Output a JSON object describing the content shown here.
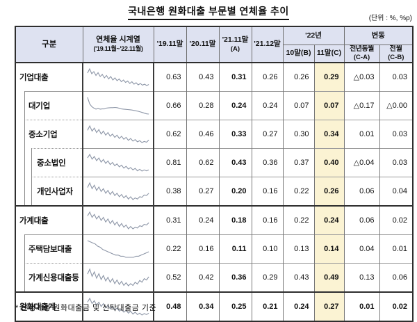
{
  "title": "국내은행 원화대출 부문별 연체율 추이",
  "unit_label": "(단위 : %, %p)",
  "footnote": "* 은행계정 원화대출금 및 신탁대출금 기준",
  "colors": {
    "header_bg": "#dee2f1",
    "highlight_col_bg": "#fbf3d3",
    "sparkline": "#8d96a7",
    "border_dark": "#2e2e2e",
    "border_light": "#9a9a9a"
  },
  "table": {
    "headers": {
      "category": "구분",
      "timeseries_line1": "연체율 시계열",
      "timeseries_line2": "('19.11월~'22.11월)",
      "col_1911": "'19.11말",
      "col_2011": "'20.11말",
      "col_2111_line1": "'21.11말",
      "col_2111_line2": "(A)",
      "col_2112": "'21.12말",
      "group_2022": "'22년",
      "col_oct": "10말(B)",
      "col_nov": "11말(C)",
      "group_change": "변동",
      "col_yoy_line1": "전년동월",
      "col_yoy_line2": "(C-A)",
      "col_mom_line1": "전월",
      "col_mom_line2": "(C-B)"
    },
    "rows": [
      {
        "label": "기업대출",
        "level": 0,
        "values": [
          "0.63",
          "0.43",
          "0.31",
          "0.26",
          "0.26",
          "0.29",
          "△0.03",
          "0.03"
        ],
        "sparkline": [
          0.62,
          0.74,
          0.6,
          0.66,
          0.55,
          0.63,
          0.52,
          0.58,
          0.48,
          0.55,
          0.45,
          0.52,
          0.42,
          0.48,
          0.4,
          0.45,
          0.37,
          0.42,
          0.35,
          0.39,
          0.32,
          0.37,
          0.3,
          0.34,
          0.28,
          0.32,
          0.27,
          0.3,
          0.26,
          0.29
        ]
      },
      {
        "label": "대기업",
        "level": 1,
        "values": [
          "0.66",
          "0.28",
          "0.24",
          "0.24",
          "0.07",
          "0.07",
          "△0.17",
          "△0.00"
        ],
        "sparkline": [
          0.85,
          0.55,
          0.42,
          0.35,
          0.3,
          0.33,
          0.3,
          0.31,
          0.31,
          0.35,
          0.36,
          0.37,
          0.37,
          0.38,
          0.37,
          0.34,
          0.31,
          0.3,
          0.29,
          0.28,
          0.27,
          0.26,
          0.24,
          0.22,
          0.2,
          0.17,
          0.14,
          0.11,
          0.08,
          0.07
        ]
      },
      {
        "label": "중소기업",
        "level": 1,
        "values": [
          "0.62",
          "0.46",
          "0.33",
          "0.27",
          "0.30",
          "0.34",
          "0.01",
          "0.03"
        ],
        "sparkline": [
          0.6,
          0.72,
          0.58,
          0.66,
          0.54,
          0.62,
          0.5,
          0.58,
          0.47,
          0.54,
          0.44,
          0.5,
          0.41,
          0.47,
          0.38,
          0.44,
          0.36,
          0.41,
          0.33,
          0.38,
          0.31,
          0.35,
          0.29,
          0.32,
          0.27,
          0.3,
          0.28,
          0.34
        ]
      },
      {
        "label": "중소법인",
        "level": 2,
        "values": [
          "0.81",
          "0.62",
          "0.43",
          "0.36",
          "0.37",
          "0.40",
          "△0.04",
          "0.03"
        ],
        "sparkline": [
          0.8,
          0.92,
          0.76,
          0.85,
          0.71,
          0.8,
          0.66,
          0.75,
          0.62,
          0.7,
          0.58,
          0.65,
          0.54,
          0.6,
          0.5,
          0.56,
          0.46,
          0.52,
          0.43,
          0.48,
          0.4,
          0.45,
          0.37,
          0.42,
          0.36,
          0.4,
          0.37,
          0.4
        ]
      },
      {
        "label": "개인사업자",
        "level": 2,
        "values": [
          "0.38",
          "0.27",
          "0.20",
          "0.16",
          "0.22",
          "0.26",
          "0.06",
          "0.04"
        ],
        "sparkline": [
          0.36,
          0.44,
          0.34,
          0.4,
          0.31,
          0.37,
          0.29,
          0.34,
          0.26,
          0.31,
          0.24,
          0.29,
          0.22,
          0.26,
          0.2,
          0.24,
          0.18,
          0.22,
          0.16,
          0.2,
          0.15,
          0.18,
          0.16,
          0.2,
          0.19,
          0.23,
          0.22,
          0.26
        ]
      },
      {
        "label": "가계대출",
        "level": 0,
        "thick_top": true,
        "values": [
          "0.31",
          "0.24",
          "0.18",
          "0.16",
          "0.22",
          "0.24",
          "0.06",
          "0.02"
        ],
        "sparkline": [
          0.33,
          0.38,
          0.31,
          0.35,
          0.29,
          0.33,
          0.27,
          0.31,
          0.25,
          0.29,
          0.23,
          0.27,
          0.21,
          0.25,
          0.19,
          0.23,
          0.18,
          0.21,
          0.16,
          0.19,
          0.16,
          0.18,
          0.17,
          0.2,
          0.19,
          0.22,
          0.21,
          0.24
        ]
      },
      {
        "label": "주택담보대출",
        "level": 1,
        "values": [
          "0.22",
          "0.16",
          "0.11",
          "0.10",
          "0.13",
          "0.14",
          "0.04",
          "0.01"
        ],
        "sparkline": [
          0.24,
          0.23,
          0.22,
          0.21,
          0.19,
          0.18,
          0.16,
          0.15,
          0.14,
          0.13,
          0.12,
          0.11,
          0.11,
          0.1,
          0.1,
          0.09,
          0.09,
          0.09,
          0.09,
          0.1,
          0.1,
          0.11,
          0.12,
          0.13,
          0.14
        ]
      },
      {
        "label": "가계신용대출등",
        "level": 1,
        "values": [
          "0.52",
          "0.42",
          "0.36",
          "0.29",
          "0.43",
          "0.49",
          "0.13",
          "0.06"
        ],
        "sparkline": [
          0.55,
          0.66,
          0.5,
          0.6,
          0.46,
          0.56,
          0.43,
          0.52,
          0.4,
          0.48,
          0.37,
          0.45,
          0.34,
          0.42,
          0.32,
          0.39,
          0.3,
          0.36,
          0.29,
          0.34,
          0.3,
          0.37,
          0.33,
          0.41,
          0.37,
          0.45,
          0.42,
          0.49
        ]
      },
      {
        "label": "원화대출계",
        "level": 0,
        "thick_top": true,
        "all_bold": true,
        "values": [
          "0.48",
          "0.34",
          "0.25",
          "0.21",
          "0.24",
          "0.27",
          "0.01",
          "0.02"
        ],
        "sparkline": [
          0.5,
          0.58,
          0.47,
          0.53,
          0.44,
          0.5,
          0.41,
          0.47,
          0.38,
          0.44,
          0.36,
          0.41,
          0.33,
          0.38,
          0.31,
          0.35,
          0.29,
          0.33,
          0.27,
          0.31,
          0.25,
          0.29,
          0.24,
          0.27,
          0.23,
          0.26,
          0.24,
          0.27
        ]
      }
    ]
  }
}
